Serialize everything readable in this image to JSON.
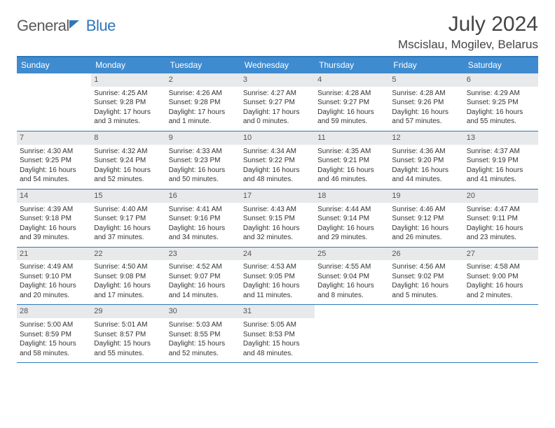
{
  "logo": {
    "word1": "General",
    "word2": "Blue"
  },
  "title": "July 2024",
  "location": "Mscislau, Mogilev, Belarus",
  "colors": {
    "primary": "#3f8bcf",
    "border": "#2f77bb",
    "daybar": "#e7e9eb",
    "text": "#333333",
    "logogray": "#5a5a5a"
  },
  "daysOfWeek": [
    "Sunday",
    "Monday",
    "Tuesday",
    "Wednesday",
    "Thursday",
    "Friday",
    "Saturday"
  ],
  "weeks": [
    [
      {
        "num": "",
        "lines": []
      },
      {
        "num": "1",
        "lines": [
          "Sunrise: 4:25 AM",
          "Sunset: 9:28 PM",
          "Daylight: 17 hours and 3 minutes."
        ]
      },
      {
        "num": "2",
        "lines": [
          "Sunrise: 4:26 AM",
          "Sunset: 9:28 PM",
          "Daylight: 17 hours and 1 minute."
        ]
      },
      {
        "num": "3",
        "lines": [
          "Sunrise: 4:27 AM",
          "Sunset: 9:27 PM",
          "Daylight: 17 hours and 0 minutes."
        ]
      },
      {
        "num": "4",
        "lines": [
          "Sunrise: 4:28 AM",
          "Sunset: 9:27 PM",
          "Daylight: 16 hours and 59 minutes."
        ]
      },
      {
        "num": "5",
        "lines": [
          "Sunrise: 4:28 AM",
          "Sunset: 9:26 PM",
          "Daylight: 16 hours and 57 minutes."
        ]
      },
      {
        "num": "6",
        "lines": [
          "Sunrise: 4:29 AM",
          "Sunset: 9:25 PM",
          "Daylight: 16 hours and 55 minutes."
        ]
      }
    ],
    [
      {
        "num": "7",
        "lines": [
          "Sunrise: 4:30 AM",
          "Sunset: 9:25 PM",
          "Daylight: 16 hours and 54 minutes."
        ]
      },
      {
        "num": "8",
        "lines": [
          "Sunrise: 4:32 AM",
          "Sunset: 9:24 PM",
          "Daylight: 16 hours and 52 minutes."
        ]
      },
      {
        "num": "9",
        "lines": [
          "Sunrise: 4:33 AM",
          "Sunset: 9:23 PM",
          "Daylight: 16 hours and 50 minutes."
        ]
      },
      {
        "num": "10",
        "lines": [
          "Sunrise: 4:34 AM",
          "Sunset: 9:22 PM",
          "Daylight: 16 hours and 48 minutes."
        ]
      },
      {
        "num": "11",
        "lines": [
          "Sunrise: 4:35 AM",
          "Sunset: 9:21 PM",
          "Daylight: 16 hours and 46 minutes."
        ]
      },
      {
        "num": "12",
        "lines": [
          "Sunrise: 4:36 AM",
          "Sunset: 9:20 PM",
          "Daylight: 16 hours and 44 minutes."
        ]
      },
      {
        "num": "13",
        "lines": [
          "Sunrise: 4:37 AM",
          "Sunset: 9:19 PM",
          "Daylight: 16 hours and 41 minutes."
        ]
      }
    ],
    [
      {
        "num": "14",
        "lines": [
          "Sunrise: 4:39 AM",
          "Sunset: 9:18 PM",
          "Daylight: 16 hours and 39 minutes."
        ]
      },
      {
        "num": "15",
        "lines": [
          "Sunrise: 4:40 AM",
          "Sunset: 9:17 PM",
          "Daylight: 16 hours and 37 minutes."
        ]
      },
      {
        "num": "16",
        "lines": [
          "Sunrise: 4:41 AM",
          "Sunset: 9:16 PM",
          "Daylight: 16 hours and 34 minutes."
        ]
      },
      {
        "num": "17",
        "lines": [
          "Sunrise: 4:43 AM",
          "Sunset: 9:15 PM",
          "Daylight: 16 hours and 32 minutes."
        ]
      },
      {
        "num": "18",
        "lines": [
          "Sunrise: 4:44 AM",
          "Sunset: 9:14 PM",
          "Daylight: 16 hours and 29 minutes."
        ]
      },
      {
        "num": "19",
        "lines": [
          "Sunrise: 4:46 AM",
          "Sunset: 9:12 PM",
          "Daylight: 16 hours and 26 minutes."
        ]
      },
      {
        "num": "20",
        "lines": [
          "Sunrise: 4:47 AM",
          "Sunset: 9:11 PM",
          "Daylight: 16 hours and 23 minutes."
        ]
      }
    ],
    [
      {
        "num": "21",
        "lines": [
          "Sunrise: 4:49 AM",
          "Sunset: 9:10 PM",
          "Daylight: 16 hours and 20 minutes."
        ]
      },
      {
        "num": "22",
        "lines": [
          "Sunrise: 4:50 AM",
          "Sunset: 9:08 PM",
          "Daylight: 16 hours and 17 minutes."
        ]
      },
      {
        "num": "23",
        "lines": [
          "Sunrise: 4:52 AM",
          "Sunset: 9:07 PM",
          "Daylight: 16 hours and 14 minutes."
        ]
      },
      {
        "num": "24",
        "lines": [
          "Sunrise: 4:53 AM",
          "Sunset: 9:05 PM",
          "Daylight: 16 hours and 11 minutes."
        ]
      },
      {
        "num": "25",
        "lines": [
          "Sunrise: 4:55 AM",
          "Sunset: 9:04 PM",
          "Daylight: 16 hours and 8 minutes."
        ]
      },
      {
        "num": "26",
        "lines": [
          "Sunrise: 4:56 AM",
          "Sunset: 9:02 PM",
          "Daylight: 16 hours and 5 minutes."
        ]
      },
      {
        "num": "27",
        "lines": [
          "Sunrise: 4:58 AM",
          "Sunset: 9:00 PM",
          "Daylight: 16 hours and 2 minutes."
        ]
      }
    ],
    [
      {
        "num": "28",
        "lines": [
          "Sunrise: 5:00 AM",
          "Sunset: 8:59 PM",
          "Daylight: 15 hours and 58 minutes."
        ]
      },
      {
        "num": "29",
        "lines": [
          "Sunrise: 5:01 AM",
          "Sunset: 8:57 PM",
          "Daylight: 15 hours and 55 minutes."
        ]
      },
      {
        "num": "30",
        "lines": [
          "Sunrise: 5:03 AM",
          "Sunset: 8:55 PM",
          "Daylight: 15 hours and 52 minutes."
        ]
      },
      {
        "num": "31",
        "lines": [
          "Sunrise: 5:05 AM",
          "Sunset: 8:53 PM",
          "Daylight: 15 hours and 48 minutes."
        ]
      },
      {
        "num": "",
        "lines": []
      },
      {
        "num": "",
        "lines": []
      },
      {
        "num": "",
        "lines": []
      }
    ]
  ]
}
